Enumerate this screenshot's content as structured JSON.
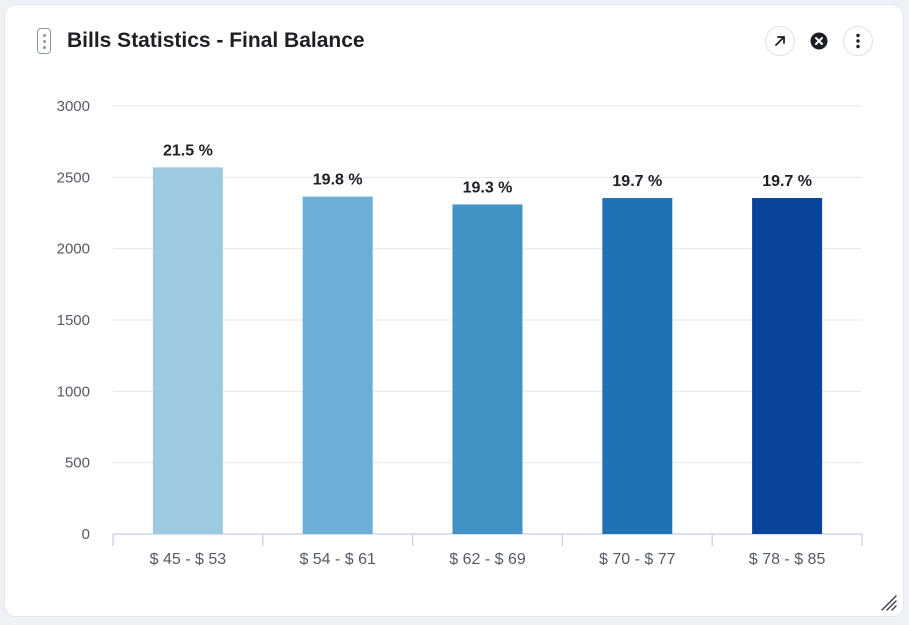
{
  "widget": {
    "title": "Bills Statistics - Final Balance"
  },
  "icons": {
    "drag": "drag-handle-icon",
    "expand": "arrow-up-right-icon",
    "close": "close-circle-icon",
    "menu": "more-vertical-icon",
    "resize": "resize-grip-icon"
  },
  "colors": {
    "grid": "#e3e6ec",
    "axis": "#c5cde0",
    "tick_text": "#555b66",
    "label_text": "#1c1f24"
  },
  "chart_data": {
    "type": "bar",
    "title": "Bills Statistics - Final Balance",
    "categories": [
      "$ 45 - $ 53",
      "$ 54 - $ 61",
      "$ 62 - $ 69",
      "$ 70 - $ 77",
      "$ 78 - $ 85"
    ],
    "values": [
      2570,
      2365,
      2310,
      2355,
      2355
    ],
    "data_labels": [
      "21.5 %",
      "19.8 %",
      "19.3 %",
      "19.7 %",
      "19.7 %"
    ],
    "bar_colors": [
      "#9ecae1",
      "#6baed6",
      "#4292c6",
      "#2171b5",
      "#08459a"
    ],
    "ylim": [
      0,
      3000
    ],
    "yticks": [
      0,
      500,
      1000,
      1500,
      2000,
      2500,
      3000
    ],
    "xlabel": "",
    "ylabel": "",
    "grid": true,
    "legend": "none"
  }
}
